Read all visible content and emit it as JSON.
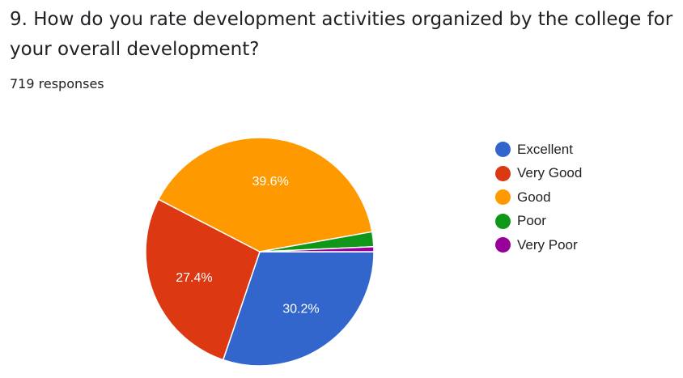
{
  "question": {
    "title": "9. How do you rate development activities organized by the college for your overall development?",
    "responses": "719 responses"
  },
  "chart_data": {
    "type": "pie",
    "categories": [
      "Excellent",
      "Very Good",
      "Good",
      "Poor",
      "Very Poor"
    ],
    "values": [
      30.2,
      27.4,
      39.6,
      2.1,
      0.7
    ],
    "labels": [
      "30.2%",
      "27.4%",
      "39.6%",
      "",
      ""
    ],
    "colors": [
      "#3366cc",
      "#dc3912",
      "#ff9900",
      "#109618",
      "#990099"
    ],
    "legend_position": "right"
  }
}
